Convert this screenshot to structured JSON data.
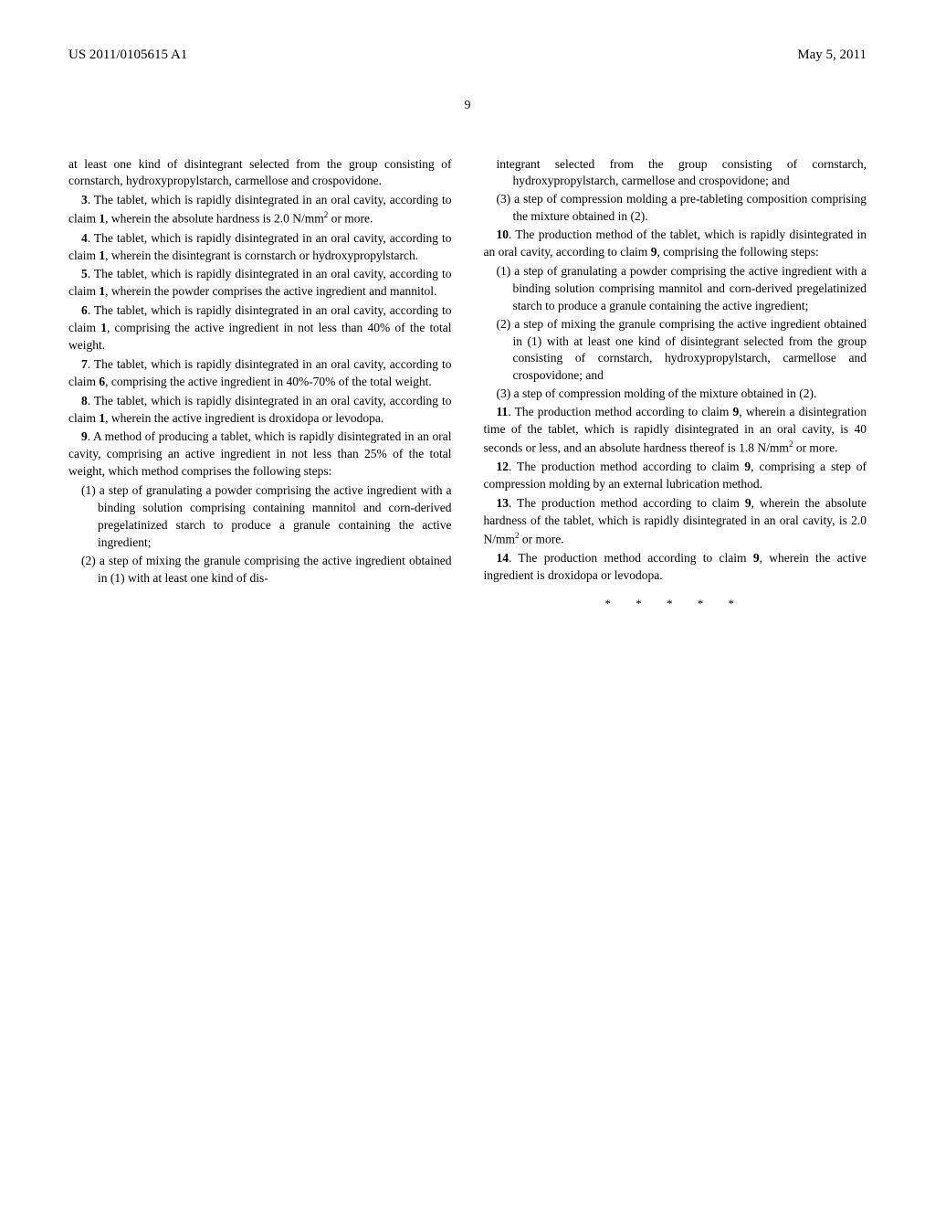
{
  "header": {
    "pub_number": "US 2011/0105615 A1",
    "date": "May 5, 2011"
  },
  "page_number": "9",
  "left_col": {
    "p1": "at least one kind of disintegrant selected from the group consisting of cornstarch, hydroxypropylstarch, carmellose and crospovidone.",
    "p2a": "3",
    "p2b": ". The tablet, which is rapidly disintegrated in an oral cavity, according to claim ",
    "p2c": "1",
    "p2d": ", wherein the absolute hardness is 2.0 N/mm",
    "p2e": " or more.",
    "p3a": "4",
    "p3b": ". The tablet, which is rapidly disintegrated in an oral cavity, according to claim ",
    "p3c": "1",
    "p3d": ", wherein the disintegrant is cornstarch or hydroxypropylstarch.",
    "p4a": "5",
    "p4b": ". The tablet, which is rapidly disintegrated in an oral cavity, according to claim ",
    "p4c": "1",
    "p4d": ", wherein the powder comprises the active ingredient and mannitol.",
    "p5a": "6",
    "p5b": ". The tablet, which is rapidly disintegrated in an oral cavity, according to claim ",
    "p5c": "1",
    "p5d": ", comprising the active ingredient in not less than 40% of the total weight.",
    "p6a": "7",
    "p6b": ". The tablet, which is rapidly disintegrated in an oral cavity, according to claim ",
    "p6c": "6",
    "p6d": ", comprising the active ingredient in 40%-70% of the total weight.",
    "p7a": "8",
    "p7b": ". The tablet, which is rapidly disintegrated in an oral cavity, according to claim ",
    "p7c": "1",
    "p7d": ", wherein the active ingredient is droxidopa or levodopa.",
    "p8a": "9",
    "p8b": ". A method of producing a tablet, which is rapidly disintegrated in an oral cavity, comprising an active ingredient in not less than 25% of the total weight, which method comprises the following steps:",
    "p8_li1": "(1) a step of granulating a powder comprising the active ingredient with a binding solution comprising containing mannitol and corn-derived pregelatinized starch to produce a granule containing the active ingredient;",
    "p8_li2": "(2) a step of mixing the granule comprising the active ingredient obtained in (1) with at least one kind of dis-"
  },
  "right_col": {
    "p1": "integrant selected from the group consisting of cornstarch, hydroxypropylstarch, carmellose and crospovidone; and",
    "p1_li3": "(3) a step of compression molding a pre-tableting composition comprising the mixture obtained in (2).",
    "p2a": "10",
    "p2b": ". The production method of the tablet, which is rapidly disintegrated in an oral cavity, according to claim ",
    "p2c": "9",
    "p2d": ", comprising the following steps:",
    "p2_li1": "(1) a step of granulating a powder comprising the active ingredient with a binding solution comprising mannitol and corn-derived pregelatinized starch to produce a granule containing the active ingredient;",
    "p2_li2": "(2) a step of mixing the granule comprising the active ingredient obtained in (1) with at least one kind of disintegrant selected from the group consisting of cornstarch, hydroxypropylstarch, carmellose and crospovidone; and",
    "p2_li3": "(3) a step of compression molding of the mixture obtained in (2).",
    "p3a": "11",
    "p3b": ". The production method according to claim ",
    "p3c": "9",
    "p3d": ", wherein a disintegration time of the tablet, which is rapidly disintegrated in an oral cavity, is 40 seconds or less, and an absolute hardness thereof is 1.8 N/mm",
    "p3e": " or more.",
    "p4a": "12",
    "p4b": ". The production method according to claim ",
    "p4c": "9",
    "p4d": ", comprising a step of compression molding by an external lubrication method.",
    "p5a": "13",
    "p5b": ". The production method according to claim ",
    "p5c": "9",
    "p5d": ", wherein the absolute hardness of the tablet, which is rapidly disintegrated in an oral cavity, is 2.0 N/mm",
    "p5e": " or more.",
    "p6a": "14",
    "p6b": ". The production method according to claim ",
    "p6c": "9",
    "p6d": ", wherein the active ingredient is droxidopa or levodopa.",
    "end_marks": "* * * * *"
  }
}
